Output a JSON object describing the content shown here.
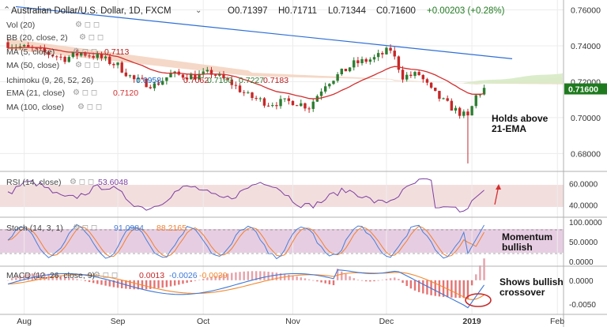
{
  "chart_data": {
    "type": "candlestick",
    "title": "Australian Dollar/U.S. Dollar, 1D, FXCM",
    "ohlc": {
      "o": "O0.71397",
      "h": "H0.71711",
      "l": "L0.71344",
      "c": "C0.71600",
      "chg": "+0.00203 (+0.28%)"
    },
    "last_price": "0.71600",
    "x_labels": [
      "Aug",
      "Sep",
      "Oct",
      "Nov",
      "Dec",
      "2019",
      "Feb"
    ],
    "price_axis": {
      "ticks": [
        "0.76000",
        "0.74000",
        "0.72000",
        "0.70000",
        "0.68000"
      ],
      "values": [
        0.76,
        0.74,
        0.72,
        0.7,
        0.68
      ],
      "range": [
        0.6705,
        0.7655
      ]
    },
    "legend": {
      "vol": "Vol (20)",
      "bb": "BB (20, close, 2)",
      "ma5": "MA (5, close)",
      "ma5_val": "0.7113",
      "ma50": "MA (50, close)",
      "ichimoku": "Ichimoku (9, 26, 52, 26)",
      "ichi_v1": "0.6958",
      "ichi_v2": "0.7062",
      "ichi_v3": "0.7160",
      "ichi_v4": "0.7227",
      "ichi_v5": "0.7183",
      "ema": "EMA (21, close)",
      "ema_val": "0.7120",
      "ma100": "MA (100, close)"
    },
    "annotation_main": [
      "Holds above",
      "21-EMA"
    ],
    "rsi": {
      "label": "RSI (14, close)",
      "value": "53.6048",
      "ticks": [
        "60.0000",
        "40.0000"
      ],
      "tick_values": [
        60,
        40
      ],
      "range": [
        29,
        71
      ]
    },
    "stoch": {
      "label": "Stoch (14, 3, 1)",
      "k": "91.0984",
      "d": "88.2165",
      "ticks": [
        "100.0000",
        "50.0000",
        "0.0000"
      ],
      "tick_values": [
        100,
        50,
        0
      ],
      "range": [
        -10,
        110
      ],
      "annotation": [
        "Momentum",
        "bullish"
      ]
    },
    "macd": {
      "label": "MACD (12, 26, close, 9)",
      "v1": "0.0013",
      "v2": "-0.0026",
      "v3": "-0.0039",
      "ticks": [
        "0.0000",
        "-0.0050"
      ],
      "tick_values": [
        0,
        -0.005
      ],
      "range": [
        -0.0072,
        0.0028
      ],
      "annotation": [
        "Shows bullish",
        "crossover"
      ]
    },
    "colors": {
      "up": "#2e7d32",
      "down": "#c62828",
      "ema": "#d32f2f",
      "trend": "#2e6fd6",
      "rsi": "#7b3fa0",
      "stochK": "#4a7fd6",
      "stochD": "#f08030",
      "macd": "#3c78d8",
      "signal": "#f08a30",
      "last": "#1f7a1f"
    }
  },
  "icons": {
    "collapse": "chevron-up-icon",
    "settings": "gear-icon"
  }
}
